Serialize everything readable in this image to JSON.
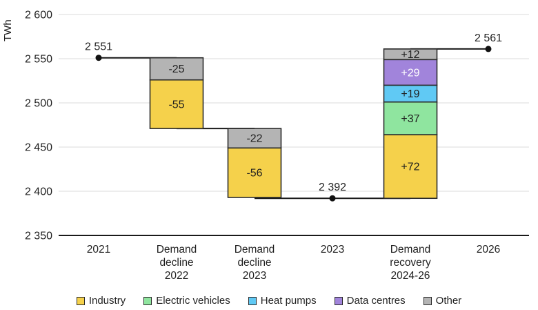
{
  "chart_data": {
    "type": "waterfall",
    "title": "",
    "unit_label": "TWh",
    "grid": true,
    "y_axis": {
      "min": 2350,
      "max": 2600,
      "tick_step": 50,
      "ticks": [
        {
          "value": 2600,
          "label": "2 600"
        },
        {
          "value": 2550,
          "label": "2 550"
        },
        {
          "value": 2500,
          "label": "2 500"
        },
        {
          "value": 2450,
          "label": "2 450"
        },
        {
          "value": 2400,
          "label": "2 400"
        },
        {
          "value": 2350,
          "label": "2 350"
        }
      ]
    },
    "columns": [
      {
        "kind": "point",
        "labels": [
          "2021"
        ],
        "value": 2551,
        "value_label": "2 551"
      },
      {
        "kind": "bar",
        "labels": [
          "Demand",
          "decline",
          "2022"
        ],
        "base": 2471,
        "segments": [
          {
            "category": "Industry",
            "value": -55,
            "label": "-55",
            "label_color": "#1f1f1f"
          },
          {
            "category": "Other",
            "value": -25,
            "label": "-25",
            "label_color": "#1f1f1f"
          }
        ]
      },
      {
        "kind": "bar",
        "labels": [
          "Demand",
          "decline",
          "2023"
        ],
        "base": 2393,
        "segments": [
          {
            "category": "Industry",
            "value": -56,
            "label": "-56",
            "label_color": "#1f1f1f"
          },
          {
            "category": "Other",
            "value": -22,
            "label": "-22",
            "label_color": "#1f1f1f"
          }
        ]
      },
      {
        "kind": "point",
        "labels": [
          "2023"
        ],
        "value": 2392,
        "value_label": "2 392"
      },
      {
        "kind": "bar",
        "labels": [
          "Demand",
          "recovery",
          "2024-26"
        ],
        "base": 2392,
        "segments": [
          {
            "category": "Industry",
            "value": 72,
            "label": "+72",
            "label_color": "#1f1f1f"
          },
          {
            "category": "Electric vehicles",
            "value": 37,
            "label": "+37",
            "label_color": "#1f1f1f"
          },
          {
            "category": "Heat pumps",
            "value": 19,
            "label": "+19",
            "label_color": "#1f1f1f"
          },
          {
            "category": "Data centres",
            "value": 29,
            "label": "+29",
            "label_color": "#ffffff"
          },
          {
            "category": "Other",
            "value": 12,
            "label": "+12",
            "label_color": "#1f1f1f"
          }
        ]
      },
      {
        "kind": "point",
        "labels": [
          "2026"
        ],
        "value": 2561,
        "value_label": "2 561"
      }
    ],
    "connectors": [
      {
        "level": 2551,
        "from": 0,
        "to": 1
      },
      {
        "level": 2471,
        "from": 1,
        "to": 2
      },
      {
        "level": 2392,
        "from": 2,
        "to": 4
      },
      {
        "level": 2561,
        "from": 4,
        "to": 5
      }
    ],
    "legend": [
      {
        "label": "Industry",
        "color": "#F5D14B"
      },
      {
        "label": "Electric vehicles",
        "color": "#8FE59F"
      },
      {
        "label": "Heat pumps",
        "color": "#60C9F4"
      },
      {
        "label": "Data centres",
        "color": "#A184DB"
      },
      {
        "label": "Other",
        "color": "#B4B4B4"
      }
    ],
    "style": {
      "gridline_color": "#E2E2E2",
      "axis_color": "#1A1A1A",
      "bar_border_color": "#2B2B2B",
      "text_color": "#1F1F1F",
      "dot_color": "#111111"
    }
  }
}
